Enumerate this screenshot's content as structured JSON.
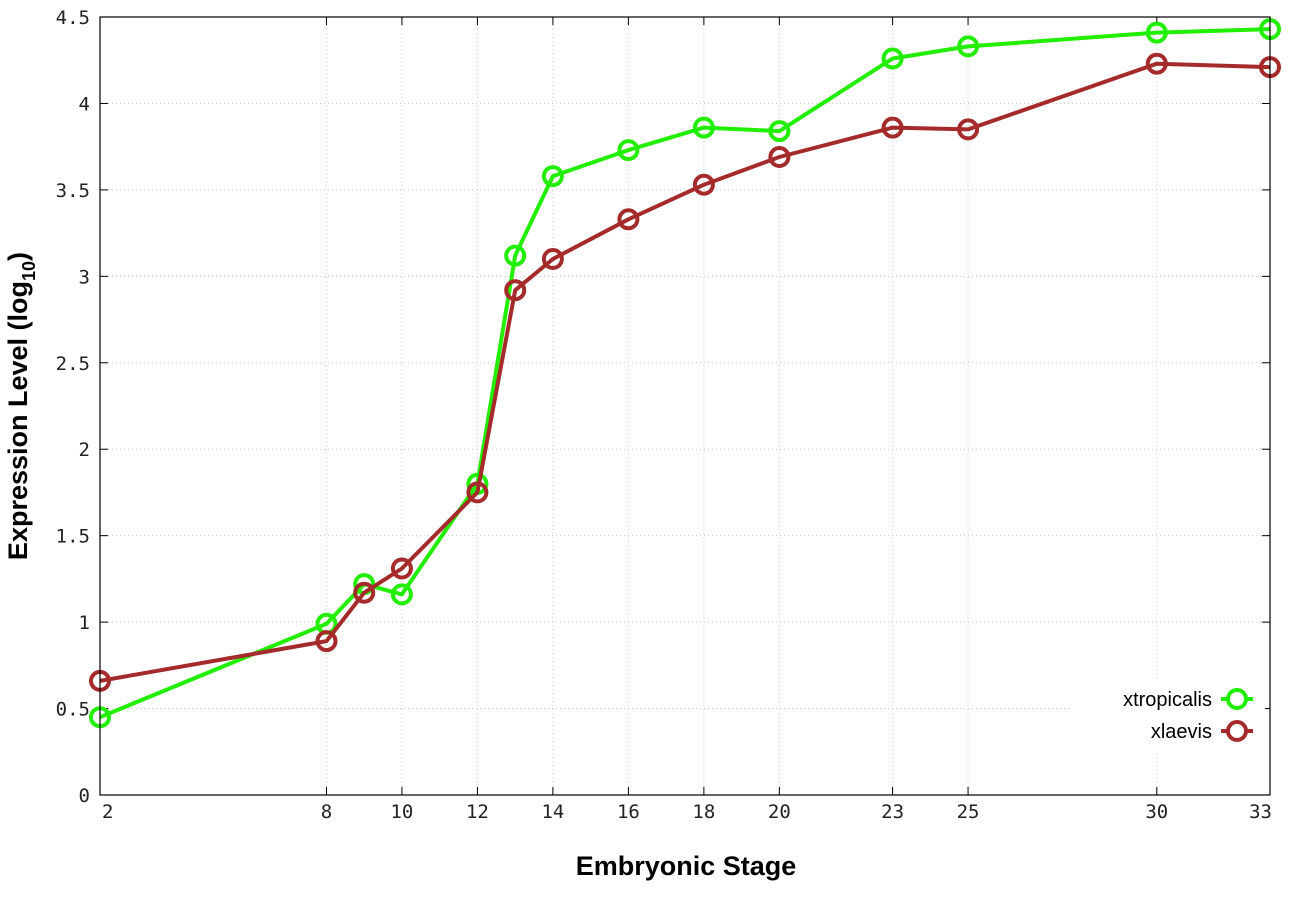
{
  "chart_data": {
    "type": "line",
    "xlabel": "Embryonic Stage",
    "ylabel": "Expression Level (log",
    "ylabel_subscript": "10",
    "ylabel_suffix": ")",
    "x_categories": [
      "2",
      "8",
      "9",
      "10",
      "12",
      "13",
      "14",
      "16",
      "18",
      "20",
      "23",
      "25",
      "30",
      "33"
    ],
    "x_tick_labels": [
      "2",
      "8",
      "10",
      "12",
      "14",
      "16",
      "18",
      "20",
      "23",
      "25",
      "30",
      "33"
    ],
    "y_ticks": [
      "0",
      "0.5",
      "1",
      "1.5",
      "2",
      "2.5",
      "3",
      "3.5",
      "4",
      "4.5"
    ],
    "ylim": [
      0,
      4.5
    ],
    "grid": true,
    "legend_position": "bottom-right",
    "series": [
      {
        "name": "xtropicalis",
        "color": "#22ee00",
        "marker": "open-circle",
        "values": [
          0.45,
          0.99,
          1.22,
          1.16,
          1.8,
          3.12,
          3.58,
          3.73,
          3.86,
          3.84,
          4.26,
          4.33,
          4.41,
          4.43
        ]
      },
      {
        "name": "xlaevis",
        "color": "#a52a2a",
        "marker": "open-circle",
        "values": [
          0.66,
          0.89,
          1.17,
          1.31,
          1.75,
          2.92,
          3.1,
          3.33,
          3.53,
          3.69,
          3.86,
          3.85,
          4.23,
          4.21
        ]
      }
    ]
  }
}
